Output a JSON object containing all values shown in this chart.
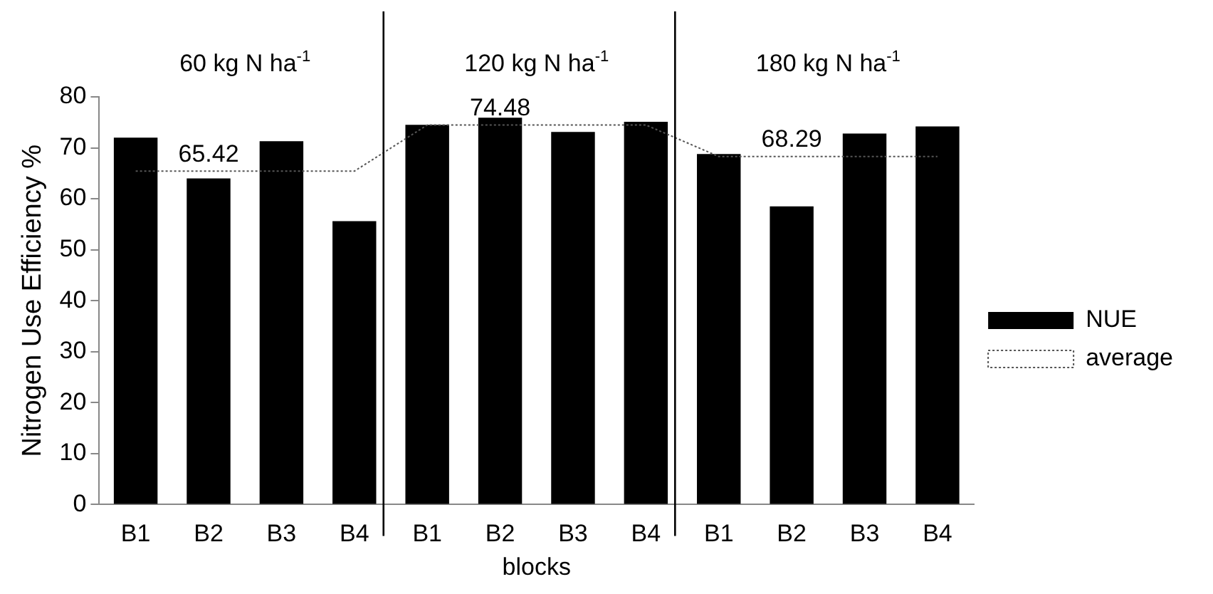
{
  "chart_data": {
    "type": "bar",
    "xlabel": "blocks",
    "ylabel": "Nitrogen Use Efficiency %",
    "categories": [
      "B1",
      "B2",
      "B3",
      "B4",
      "B1",
      "B2",
      "B3",
      "B4",
      "B1",
      "B2",
      "B3",
      "B4"
    ],
    "series": [
      {
        "name": "NUE",
        "color": "#000000",
        "values": [
          72,
          64,
          71.3,
          55.6,
          74.5,
          75.9,
          73.1,
          75.1,
          68.8,
          58.5,
          72.8,
          74.2
        ]
      },
      {
        "name": "average",
        "type": "line",
        "color": "#555555",
        "line_style": "dotted",
        "marker": "none",
        "values": [
          65.42,
          65.42,
          65.42,
          65.42,
          74.48,
          74.48,
          74.48,
          74.48,
          68.29,
          68.29,
          68.29,
          68.29
        ],
        "value_labels": [
          null,
          "65.42",
          null,
          null,
          null,
          "74.48",
          null,
          null,
          null,
          "68.29",
          null,
          null
        ]
      }
    ],
    "ylim": [
      0,
      80
    ],
    "yticks": [
      0,
      10,
      20,
      30,
      40,
      50,
      60,
      70,
      80
    ],
    "grid": false,
    "legend": "right",
    "annotations": [
      "60 kg N ha$^{-1}$",
      "120 kg N ha$^{-1}$",
      "180 kg N ha$^{-1}$"
    ]
  }
}
